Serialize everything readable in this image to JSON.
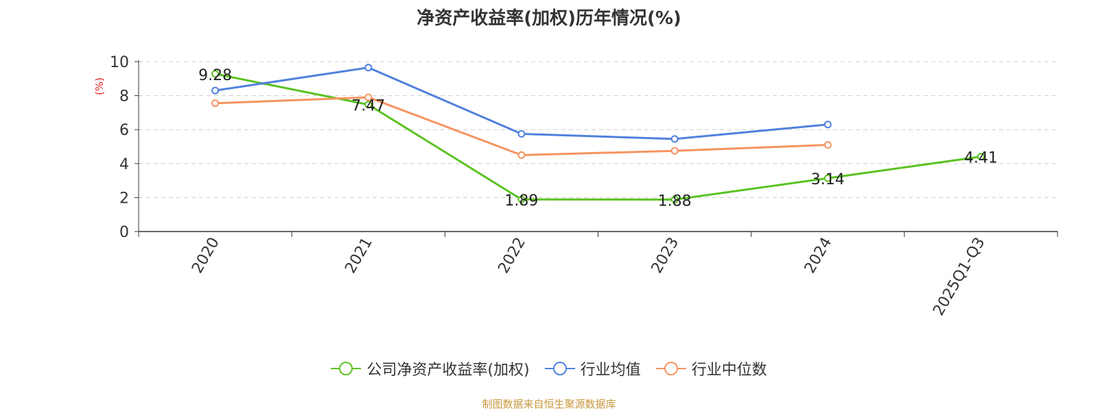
{
  "chart_data": {
    "type": "line",
    "title": "净资产收益率(加权)历年情况(%)",
    "ylabel": "(%)",
    "xlabel": "",
    "ylim": [
      0,
      10
    ],
    "yticks": [
      0,
      2,
      4,
      6,
      8,
      10
    ],
    "categories": [
      "2020",
      "2021",
      "2022",
      "2023",
      "2024",
      "2025Q1-Q3"
    ],
    "grid": true,
    "legend_position": "bottom",
    "series": [
      {
        "name": "公司净资产收益率(加权)",
        "color": "#5ac220",
        "values": [
          9.28,
          7.47,
          1.89,
          1.88,
          3.14,
          4.41
        ],
        "labels": [
          "9.28",
          "7.47",
          "1.89",
          "1.88",
          "3.14",
          "4.41"
        ]
      },
      {
        "name": "行业均值",
        "color": "#4f80de",
        "values": [
          8.3,
          9.65,
          5.75,
          5.45,
          6.3,
          null
        ],
        "labels": []
      },
      {
        "name": "行业中位数",
        "color": "#f7935f",
        "values": [
          7.55,
          7.9,
          4.5,
          4.75,
          5.1,
          null
        ],
        "labels": []
      }
    ]
  },
  "footer": {
    "source": "制图数据来自恒生聚源数据库"
  }
}
